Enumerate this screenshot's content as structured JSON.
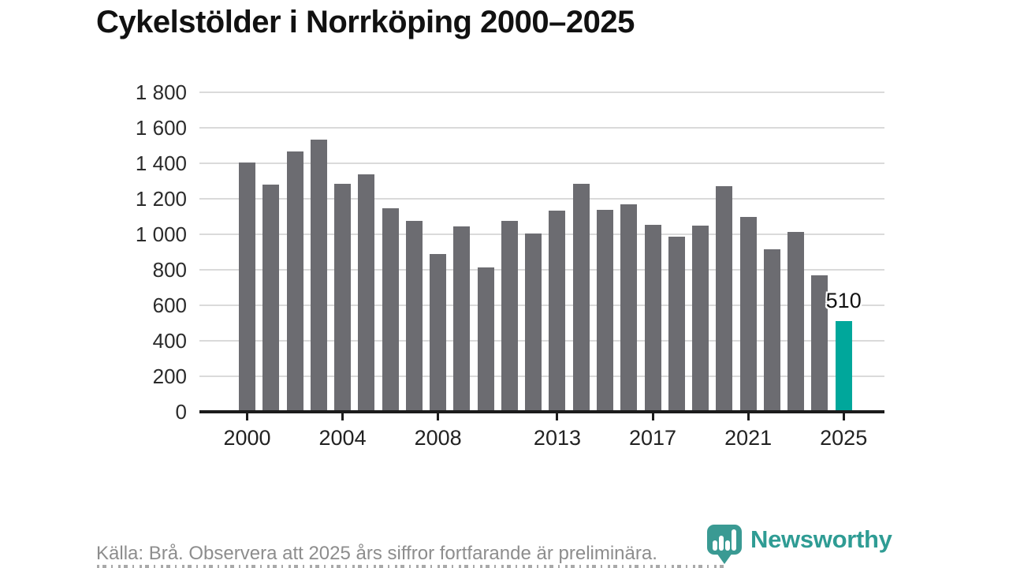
{
  "title": "Cykelstölder i Norrköping 2000–2025",
  "footer": {
    "source_text": "Källa: Brå. Observera att 2025 års siffror fortfarande är preliminära.",
    "brand": "Newsworthy"
  },
  "colors": {
    "bar_default": "#6c6c71",
    "bar_highlight": "#00a79b",
    "grid": "#dadada",
    "axis": "#1c1c1c",
    "brand_teal": "#3a9a93"
  },
  "chart_data": {
    "type": "bar",
    "title": "Cykelstölder i Norrköping 2000–2025",
    "x": [
      2000,
      2001,
      2002,
      2003,
      2004,
      2005,
      2006,
      2007,
      2008,
      2009,
      2010,
      2011,
      2012,
      2013,
      2014,
      2015,
      2016,
      2017,
      2018,
      2019,
      2020,
      2021,
      2022,
      2023,
      2024,
      2025
    ],
    "values": [
      1405,
      1280,
      1465,
      1535,
      1285,
      1340,
      1145,
      1075,
      890,
      1045,
      815,
      1075,
      1005,
      1135,
      1285,
      1140,
      1170,
      1055,
      985,
      1050,
      1270,
      1100,
      915,
      1015,
      770,
      510
    ],
    "highlight_year": 2025,
    "highlight_label": "510",
    "ylim": [
      0,
      1800
    ],
    "yticks": [
      0,
      200,
      400,
      600,
      800,
      1000,
      1200,
      1400,
      1600,
      1800
    ],
    "ytick_labels": [
      "0",
      "200",
      "400",
      "600",
      "800",
      "1 000",
      "1 200",
      "1 400",
      "1 600",
      "1 800"
    ],
    "xtick_years": [
      2000,
      2004,
      2008,
      2013,
      2017,
      2021,
      2025
    ],
    "grid": true,
    "legend": false
  }
}
